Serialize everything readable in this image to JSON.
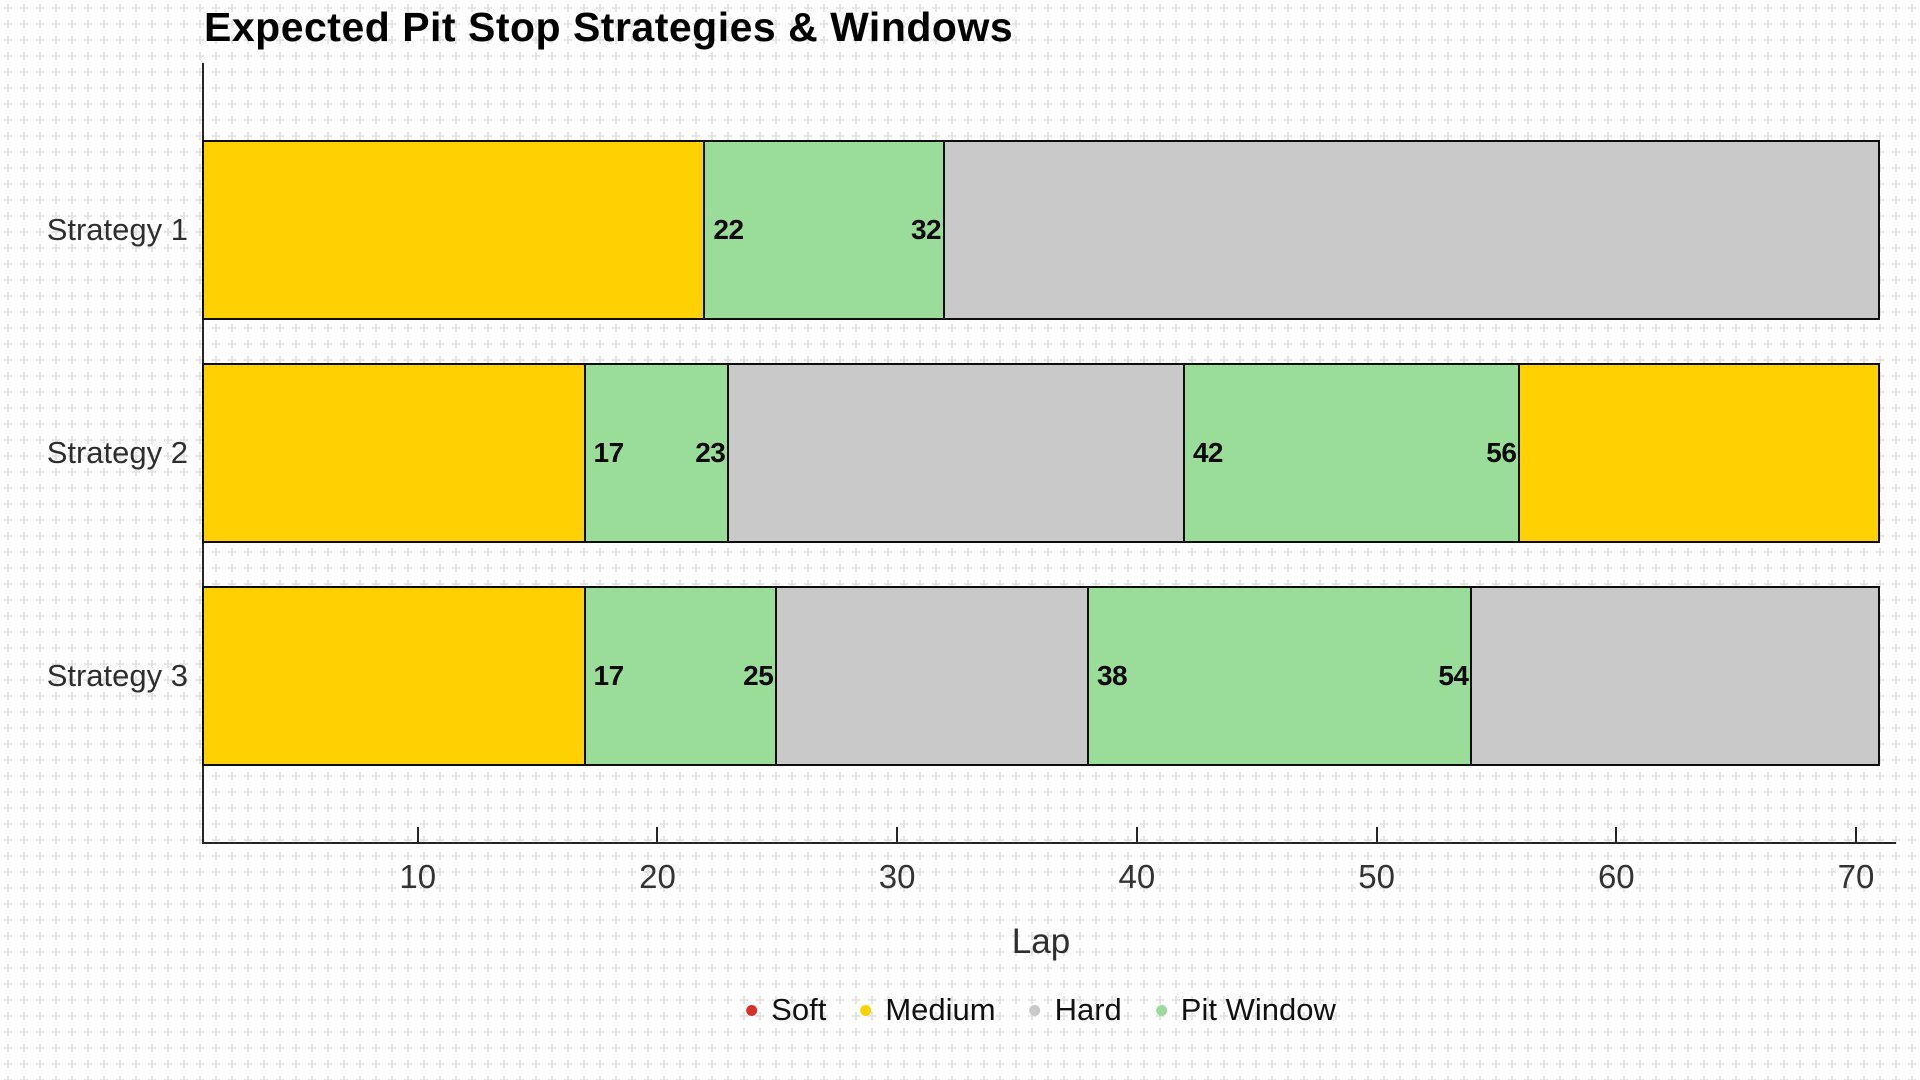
{
  "title": "Expected Pit Stop Strategies & Windows",
  "colors": {
    "Soft": "#d6322b",
    "Medium": "#ffd103",
    "Hard": "#c9c9c9",
    "Pit Window": "#99dd99",
    "bar_border": "#0d0d0d",
    "axis": "#262626",
    "grid": "#e4e4e4"
  },
  "chart_data": {
    "type": "bar",
    "orientation": "horizontal-stacked",
    "title": "Expected Pit Stop Strategies & Windows",
    "xlabel": "Lap",
    "ylabel": "",
    "xlim": [
      1,
      71
    ],
    "xticks": [
      10,
      20,
      30,
      40,
      50,
      60,
      70
    ],
    "grid": "graph-paper cross background",
    "legend_position": "bottom-center",
    "legend": [
      {
        "label": "Soft"
      },
      {
        "label": "Medium"
      },
      {
        "label": "Hard"
      },
      {
        "label": "Pit Window"
      }
    ],
    "rows": [
      {
        "label": "Strategy 1",
        "segments": [
          {
            "compound": "Medium",
            "start": 1,
            "end": 22
          },
          {
            "compound": "Pit Window",
            "start": 22,
            "end": 32,
            "start_label": "22",
            "end_label": "32"
          },
          {
            "compound": "Hard",
            "start": 32,
            "end": 71
          }
        ]
      },
      {
        "label": "Strategy 2",
        "segments": [
          {
            "compound": "Medium",
            "start": 1,
            "end": 17
          },
          {
            "compound": "Pit Window",
            "start": 17,
            "end": 23,
            "start_label": "17",
            "end_label": "23"
          },
          {
            "compound": "Hard",
            "start": 23,
            "end": 42
          },
          {
            "compound": "Pit Window",
            "start": 42,
            "end": 56,
            "start_label": "42",
            "end_label": "56"
          },
          {
            "compound": "Medium",
            "start": 56,
            "end": 71
          }
        ]
      },
      {
        "label": "Strategy 3",
        "segments": [
          {
            "compound": "Medium",
            "start": 1,
            "end": 17
          },
          {
            "compound": "Pit Window",
            "start": 17,
            "end": 25,
            "start_label": "17",
            "end_label": "25"
          },
          {
            "compound": "Hard",
            "start": 25,
            "end": 38
          },
          {
            "compound": "Pit Window",
            "start": 38,
            "end": 54,
            "start_label": "38",
            "end_label": "54"
          },
          {
            "compound": "Hard",
            "start": 54,
            "end": 71
          }
        ]
      }
    ]
  }
}
